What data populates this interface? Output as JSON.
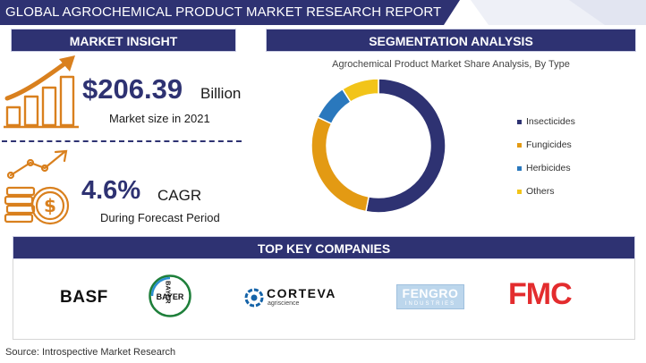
{
  "header": {
    "title": "GLOBAL AGROCHEMICAL PRODUCT MARKET RESEARCH REPORT"
  },
  "market_insight": {
    "heading": "MARKET INSIGHT",
    "market_size": {
      "value": "$206.39",
      "unit": "Billion",
      "caption": "Market size in 2021"
    },
    "cagr": {
      "value": "4.6%",
      "unit": "CAGR",
      "caption": "During Forecast Period"
    }
  },
  "segmentation": {
    "heading": "SEGMENTATION ANALYSIS",
    "chart_title": "Agrochemical Product Market Share Analysis, By Type"
  },
  "chart_data": {
    "type": "pie",
    "title": "Agrochemical Product Market Share Analysis, By Type",
    "donut": true,
    "legend_position": "right",
    "categories": [
      "Insecticides",
      "Fungicides",
      "Herbicides",
      "Others"
    ],
    "values": [
      53,
      29,
      9,
      9
    ],
    "colors": [
      "#2e3272",
      "#e39a13",
      "#2a78bd",
      "#f2c419"
    ]
  },
  "companies": {
    "heading": "TOP KEY COMPANIES",
    "logos": [
      {
        "name": "basf",
        "text": "BASF"
      },
      {
        "name": "bayer",
        "text_h": "BAYER",
        "text_v": "BAYER"
      },
      {
        "name": "corteva",
        "text": "CORTEVA",
        "subtext": "agriscience"
      },
      {
        "name": "fengro",
        "text": "FENGRO",
        "subtext": "INDUSTRIES"
      },
      {
        "name": "fmc",
        "text": "FMC"
      }
    ]
  },
  "footer": {
    "source": "Source: Introspective Market Research"
  },
  "icons": [
    "growth-chart-icon",
    "coin-growth-icon"
  ],
  "colors": {
    "navy": "#2e3272",
    "orange": "#d9801e",
    "fmc_red": "#e32c2e"
  }
}
